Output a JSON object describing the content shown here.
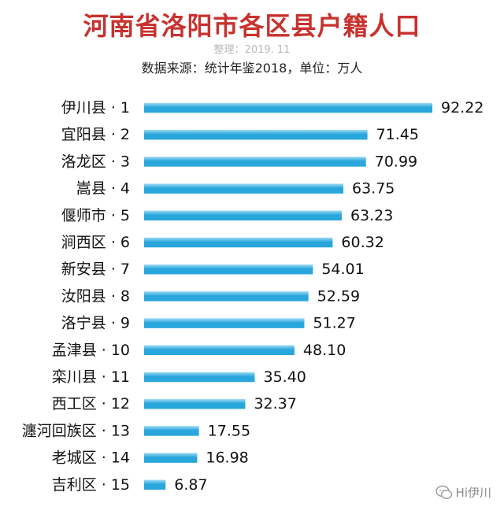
{
  "title": "河南省洛阳市各区县户籍人口",
  "credit": "整理：2019. 11",
  "source": "数据来源：统计年鉴2018，单位：万人",
  "watermark": "Hi伊川",
  "chart_data": {
    "type": "bar",
    "orientation": "horizontal",
    "title": "河南省洛阳市各区县户籍人口",
    "categories": [
      "伊川县 · 1",
      "宜阳县 · 2",
      "洛龙区 · 3",
      "嵩县 · 4",
      "偃师市 · 5",
      "涧西区 · 6",
      "新安县 · 7",
      "汝阳县 · 8",
      "洛宁县 · 9",
      "孟津县 · 10",
      "栾川县 · 11",
      "西工区 · 12",
      "瀍河回族区 · 13",
      "老城区 · 14",
      "吉利区 · 15"
    ],
    "values": [
      92.22,
      71.45,
      70.99,
      63.75,
      63.23,
      60.32,
      54.01,
      52.59,
      51.27,
      48.1,
      35.4,
      32.37,
      17.55,
      16.98,
      6.87
    ],
    "value_labels": [
      "92.22",
      "71.45",
      "70.99",
      "63.75",
      "63.23",
      "60.32",
      "54.01",
      "52.59",
      "51.27",
      "48.10",
      "35.40",
      "32.37",
      "17.55",
      "16.98",
      "6.87"
    ],
    "xlim": [
      0,
      92.22
    ],
    "grid": false,
    "colors": {
      "bar": "#29a6dc",
      "bar_highlight": "#9fdaf4",
      "label": "#111111"
    }
  }
}
